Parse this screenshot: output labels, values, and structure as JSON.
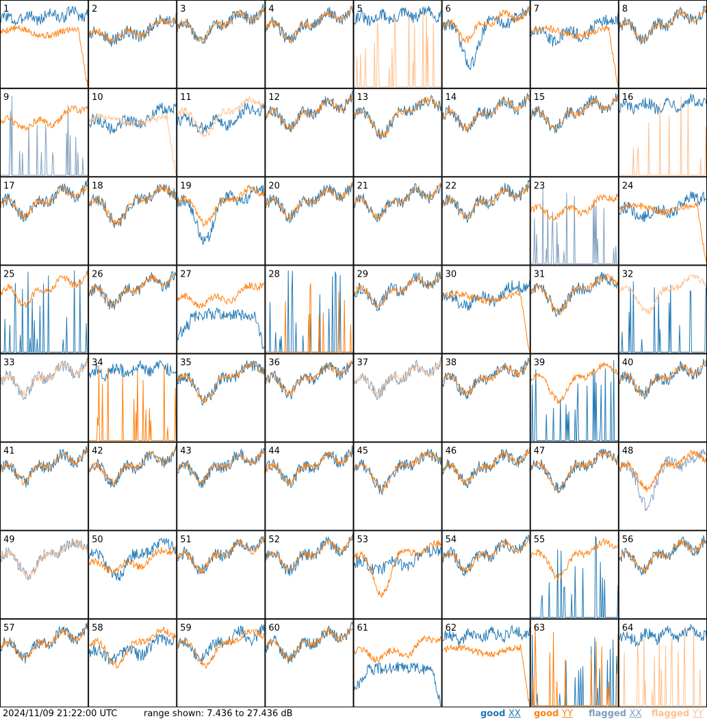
{
  "timestamp": "2024/11/09 21:22:00 UTC",
  "range_text": "range shown: 7.436 to 27.436 dB",
  "legend": [
    {
      "prefix": "good ",
      "pol": "XX",
      "color": "#1f77b4"
    },
    {
      "prefix": "good ",
      "pol": "YY",
      "color": "#ff7f0e"
    },
    {
      "prefix": "flagged ",
      "pol": "XX",
      "color": "#7f9fbf"
    },
    {
      "prefix": "flagged ",
      "pol": "YY",
      "color": "#ffbf8c"
    }
  ],
  "colors": {
    "good_xx": "#1f77b4",
    "good_yy": "#ff7f0e",
    "flagged_xx": "#7f9fbf",
    "flagged_yy": "#ffbf8c"
  },
  "chart_data": {
    "type": "line",
    "grid": {
      "rows": 8,
      "cols": 8
    },
    "ylim_db": [
      7.436,
      27.436
    ],
    "panels": [
      {
        "id": "1",
        "xx": "good",
        "yy": "good",
        "shape_xx": "noisy_high",
        "shape_yy": "flat_drop"
      },
      {
        "id": "2",
        "xx": "good",
        "yy": "good",
        "shape_xx": "rise",
        "shape_yy": "rise"
      },
      {
        "id": "3",
        "xx": "good",
        "yy": "good",
        "shape_xx": "wave",
        "shape_yy": "wave"
      },
      {
        "id": "4",
        "xx": "good",
        "yy": "good",
        "shape_xx": "wave",
        "shape_yy": "wave"
      },
      {
        "id": "5",
        "xx": "good",
        "yy": "flagged",
        "shape_xx": "noisy_high",
        "shape_yy": "spikes"
      },
      {
        "id": "6",
        "xx": "good",
        "yy": "good",
        "shape_xx": "dip_deep",
        "shape_yy": "wave"
      },
      {
        "id": "7",
        "xx": "good",
        "yy": "good",
        "shape_xx": "rise",
        "shape_yy": "flat_drop"
      },
      {
        "id": "8",
        "xx": "good",
        "yy": "good",
        "shape_xx": "wave",
        "shape_yy": "wave"
      },
      {
        "id": "9",
        "xx": "flagged",
        "yy": "good",
        "shape_xx": "spikes",
        "shape_yy": "rise"
      },
      {
        "id": "10",
        "xx": "good",
        "yy": "flagged",
        "shape_xx": "rise",
        "shape_yy": "flat_drop"
      },
      {
        "id": "11",
        "xx": "good",
        "yy": "flagged",
        "shape_xx": "rise",
        "shape_yy": "dip"
      },
      {
        "id": "12",
        "xx": "good",
        "yy": "good",
        "shape_xx": "wave",
        "shape_yy": "wave"
      },
      {
        "id": "13",
        "xx": "good",
        "yy": "good",
        "shape_xx": "dip",
        "shape_yy": "dip"
      },
      {
        "id": "14",
        "xx": "good",
        "yy": "good",
        "shape_xx": "wave",
        "shape_yy": "wave"
      },
      {
        "id": "15",
        "xx": "good",
        "yy": "good",
        "shape_xx": "wave",
        "shape_yy": "wave"
      },
      {
        "id": "16",
        "xx": "good",
        "yy": "flagged",
        "shape_xx": "noisy_high",
        "shape_yy": "spikes"
      },
      {
        "id": "17",
        "xx": "good",
        "yy": "good",
        "shape_xx": "wave",
        "shape_yy": "wave"
      },
      {
        "id": "18",
        "xx": "good",
        "yy": "good",
        "shape_xx": "dip",
        "shape_yy": "dip"
      },
      {
        "id": "19",
        "xx": "good",
        "yy": "good",
        "shape_xx": "dip_deep",
        "shape_yy": "dip"
      },
      {
        "id": "20",
        "xx": "good",
        "yy": "good",
        "shape_xx": "wave",
        "shape_yy": "wave"
      },
      {
        "id": "21",
        "xx": "good",
        "yy": "good",
        "shape_xx": "wave",
        "shape_yy": "wave"
      },
      {
        "id": "22",
        "xx": "good",
        "yy": "good",
        "shape_xx": "wave",
        "shape_yy": "wave"
      },
      {
        "id": "23",
        "xx": "flagged",
        "yy": "good",
        "shape_xx": "spikes",
        "shape_yy": "rise"
      },
      {
        "id": "24",
        "xx": "good",
        "yy": "good",
        "shape_xx": "rise",
        "shape_yy": "flat_drop"
      },
      {
        "id": "25",
        "xx": "good",
        "yy": "good",
        "shape_xx": "spikes",
        "shape_yy": "wave"
      },
      {
        "id": "26",
        "xx": "good",
        "yy": "good",
        "shape_xx": "wave",
        "shape_yy": "wave"
      },
      {
        "id": "27",
        "xx": "good",
        "yy": "good",
        "shape_xx": "hump_drop",
        "shape_yy": "rise"
      },
      {
        "id": "28",
        "xx": "good",
        "yy": "good",
        "shape_xx": "spikes",
        "shape_yy": "spikes"
      },
      {
        "id": "29",
        "xx": "good",
        "yy": "good",
        "shape_xx": "wave",
        "shape_yy": "wave"
      },
      {
        "id": "30",
        "xx": "good",
        "yy": "good",
        "shape_xx": "rise",
        "shape_yy": "flat_drop"
      },
      {
        "id": "31",
        "xx": "good",
        "yy": "good",
        "shape_xx": "dip",
        "shape_yy": "dip"
      },
      {
        "id": "32",
        "xx": "good",
        "yy": "flagged",
        "shape_xx": "spikes",
        "shape_yy": "dip"
      },
      {
        "id": "33",
        "xx": "flagged",
        "yy": "flagged",
        "shape_xx": "wave",
        "shape_yy": "wave"
      },
      {
        "id": "34",
        "xx": "good",
        "yy": "good",
        "shape_xx": "noisy_high",
        "shape_yy": "spikes"
      },
      {
        "id": "35",
        "xx": "good",
        "yy": "good",
        "shape_xx": "dip",
        "shape_yy": "dip"
      },
      {
        "id": "36",
        "xx": "good",
        "yy": "good",
        "shape_xx": "wave",
        "shape_yy": "wave"
      },
      {
        "id": "37",
        "xx": "flagged",
        "yy": "flagged",
        "shape_xx": "wave",
        "shape_yy": "wave"
      },
      {
        "id": "38",
        "xx": "good",
        "yy": "good",
        "shape_xx": "wave",
        "shape_yy": "wave"
      },
      {
        "id": "39",
        "xx": "good",
        "yy": "good",
        "shape_xx": "spikes",
        "shape_yy": "dip"
      },
      {
        "id": "40",
        "xx": "good",
        "yy": "good",
        "shape_xx": "wave",
        "shape_yy": "wave"
      },
      {
        "id": "41",
        "xx": "good",
        "yy": "good",
        "shape_xx": "wave",
        "shape_yy": "wave"
      },
      {
        "id": "42",
        "xx": "good",
        "yy": "good",
        "shape_xx": "wave",
        "shape_yy": "wave"
      },
      {
        "id": "43",
        "xx": "good",
        "yy": "good",
        "shape_xx": "wave",
        "shape_yy": "wave"
      },
      {
        "id": "44",
        "xx": "good",
        "yy": "good",
        "shape_xx": "wave",
        "shape_yy": "wave"
      },
      {
        "id": "45",
        "xx": "good",
        "yy": "good",
        "shape_xx": "dip",
        "shape_yy": "dip"
      },
      {
        "id": "46",
        "xx": "good",
        "yy": "good",
        "shape_xx": "wave",
        "shape_yy": "wave"
      },
      {
        "id": "47",
        "xx": "good",
        "yy": "good",
        "shape_xx": "dip",
        "shape_yy": "dip"
      },
      {
        "id": "48",
        "xx": "flagged",
        "yy": "good",
        "shape_xx": "dip_deep",
        "shape_yy": "dip"
      },
      {
        "id": "49",
        "xx": "flagged",
        "yy": "flagged",
        "shape_xx": "dip",
        "shape_yy": "dip"
      },
      {
        "id": "50",
        "xx": "good",
        "yy": "good",
        "shape_xx": "dip",
        "shape_yy": "rise"
      },
      {
        "id": "51",
        "xx": "good",
        "yy": "good",
        "shape_xx": "wave",
        "shape_yy": "wave"
      },
      {
        "id": "52",
        "xx": "good",
        "yy": "good",
        "shape_xx": "wave",
        "shape_yy": "wave"
      },
      {
        "id": "53",
        "xx": "good",
        "yy": "good",
        "shape_xx": "rise",
        "shape_yy": "dip_deep"
      },
      {
        "id": "54",
        "xx": "good",
        "yy": "good",
        "shape_xx": "wave",
        "shape_yy": "wave"
      },
      {
        "id": "55",
        "xx": "good",
        "yy": "good",
        "shape_xx": "spikes",
        "shape_yy": "dip"
      },
      {
        "id": "56",
        "xx": "good",
        "yy": "good",
        "shape_xx": "wave",
        "shape_yy": "wave"
      },
      {
        "id": "57",
        "xx": "good",
        "yy": "good",
        "shape_xx": "wave",
        "shape_yy": "wave"
      },
      {
        "id": "58",
        "xx": "good",
        "yy": "good",
        "shape_xx": "rise",
        "shape_yy": "dip"
      },
      {
        "id": "59",
        "xx": "good",
        "yy": "good",
        "shape_xx": "wave",
        "shape_yy": "dip"
      },
      {
        "id": "60",
        "xx": "good",
        "yy": "good",
        "shape_xx": "wave",
        "shape_yy": "wave"
      },
      {
        "id": "61",
        "xx": "good",
        "yy": "good",
        "shape_xx": "hump_drop",
        "shape_yy": "rise"
      },
      {
        "id": "62",
        "xx": "good",
        "yy": "good",
        "shape_xx": "noisy_high",
        "shape_yy": "flat_drop"
      },
      {
        "id": "63",
        "xx": "good",
        "yy": "good",
        "shape_xx": "spikes",
        "shape_yy": "spikes"
      },
      {
        "id": "64",
        "xx": "good",
        "yy": "flagged",
        "shape_xx": "noisy_high",
        "shape_yy": "spikes"
      }
    ]
  }
}
